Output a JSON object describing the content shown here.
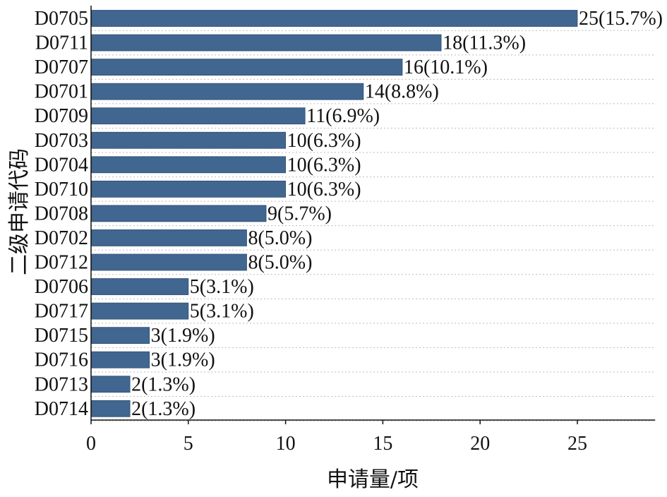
{
  "chart_data": {
    "type": "bar",
    "orientation": "horizontal",
    "xlabel": "申请量/项",
    "ylabel": "二级申请代码",
    "xlim": [
      0,
      29
    ],
    "xticks": [
      0,
      5,
      10,
      15,
      20,
      25
    ],
    "grid": "horizontal dotted",
    "bar_color": "#41668f",
    "categories": [
      "D0705",
      "D0711",
      "D0707",
      "D0701",
      "D0709",
      "D0703",
      "D0704",
      "D0710",
      "D0708",
      "D0702",
      "D0712",
      "D0706",
      "D0717",
      "D0715",
      "D0716",
      "D0713",
      "D0714"
    ],
    "values": [
      25,
      18,
      16,
      14,
      11,
      10,
      10,
      10,
      9,
      8,
      8,
      5,
      5,
      3,
      3,
      2,
      2
    ],
    "labels": [
      "25(15.7%)",
      "18(11.3%)",
      "16(10.1%)",
      "14(8.8%)",
      "11(6.9%)",
      "10(6.3%)",
      "10(6.3%)",
      "10(6.3%)",
      "9(5.7%)",
      "8(5.0%)",
      "8(5.0%)",
      "5(3.1%)",
      "5(3.1%)",
      "3(1.9%)",
      "3(1.9%)",
      "2(1.3%)",
      "2(1.3%)"
    ]
  }
}
